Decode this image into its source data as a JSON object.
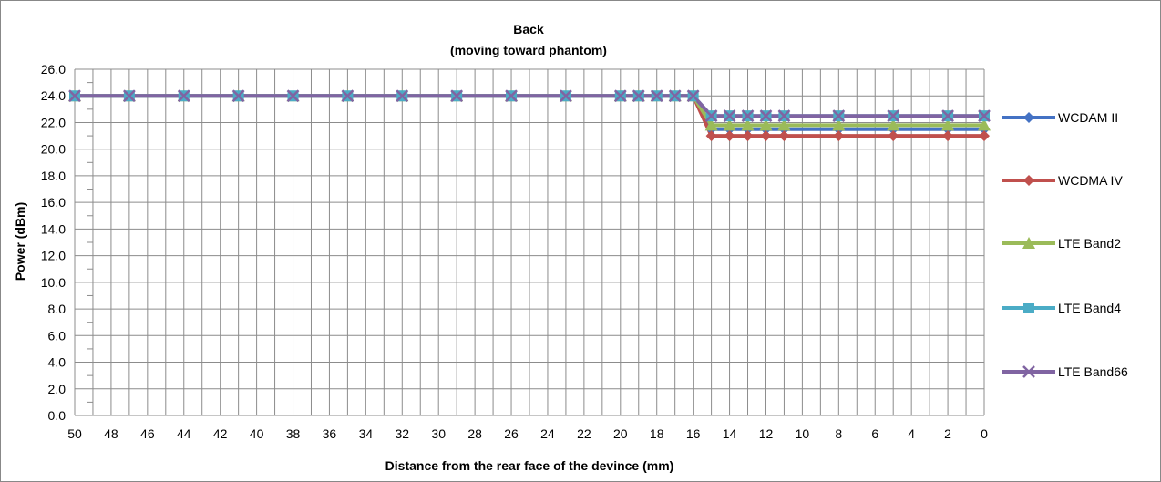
{
  "chart_data": {
    "type": "line",
    "title": "Back",
    "subtitle": "(moving toward phantom)",
    "xlabel": "Distance from the rear face of the devince (mm)",
    "ylabel": "Power (dBm)",
    "ylim": [
      0,
      26
    ],
    "y_tick_labels": [
      "0.0",
      "2.0",
      "4.0",
      "6.0",
      "8.0",
      "10.0",
      "12.0",
      "14.0",
      "16.0",
      "18.0",
      "20.0",
      "22.0",
      "24.0",
      "26.0"
    ],
    "x_tick_labels": [
      "50",
      "48",
      "46",
      "44",
      "42",
      "40",
      "38",
      "36",
      "34",
      "32",
      "30",
      "28",
      "26",
      "24",
      "22",
      "20",
      "18",
      "16",
      "14",
      "12",
      "10",
      "8",
      "6",
      "4",
      "2",
      "0"
    ],
    "x_range": [
      50,
      0
    ],
    "grid": true,
    "legend_position": "right",
    "x": [
      50,
      47,
      44,
      41,
      38,
      35,
      32,
      29,
      26,
      23,
      20,
      19,
      18,
      17,
      16,
      15,
      14,
      13,
      12,
      11,
      8,
      5,
      2,
      0
    ],
    "series": [
      {
        "name": "WCDAM II",
        "color": "#4472C4",
        "marker": "diamond",
        "values": [
          24,
          24,
          24,
          24,
          24,
          24,
          24,
          24,
          24,
          24,
          24,
          24,
          24,
          24,
          24,
          21.5,
          21.5,
          21.5,
          21.5,
          21.5,
          21.5,
          21.5,
          21.5,
          21.5
        ]
      },
      {
        "name": "WCDMA IV",
        "color": "#C0504D",
        "marker": "diamond",
        "values": [
          24,
          24,
          24,
          24,
          24,
          24,
          24,
          24,
          24,
          24,
          24,
          24,
          24,
          24,
          24,
          21,
          21,
          21,
          21,
          21,
          21,
          21,
          21,
          21
        ]
      },
      {
        "name": "LTE Band2",
        "color": "#9BBB59",
        "marker": "triangle",
        "values": [
          24,
          24,
          24,
          24,
          24,
          24,
          24,
          24,
          24,
          24,
          24,
          24,
          24,
          24,
          24,
          21.8,
          21.8,
          21.8,
          21.8,
          21.8,
          21.8,
          21.8,
          21.8,
          21.8
        ]
      },
      {
        "name": "LTE Band4",
        "color": "#4BACC6",
        "marker": "square",
        "values": [
          24,
          24,
          24,
          24,
          24,
          24,
          24,
          24,
          24,
          24,
          24,
          24,
          24,
          24,
          24,
          22.5,
          22.5,
          22.5,
          22.5,
          22.5,
          22.5,
          22.5,
          22.5,
          22.5
        ]
      },
      {
        "name": "LTE Band66",
        "color": "#8064A2",
        "marker": "x",
        "values": [
          24,
          24,
          24,
          24,
          24,
          24,
          24,
          24,
          24,
          24,
          24,
          24,
          24,
          24,
          24,
          22.5,
          22.5,
          22.5,
          22.5,
          22.5,
          22.5,
          22.5,
          22.5,
          22.5
        ]
      }
    ]
  }
}
